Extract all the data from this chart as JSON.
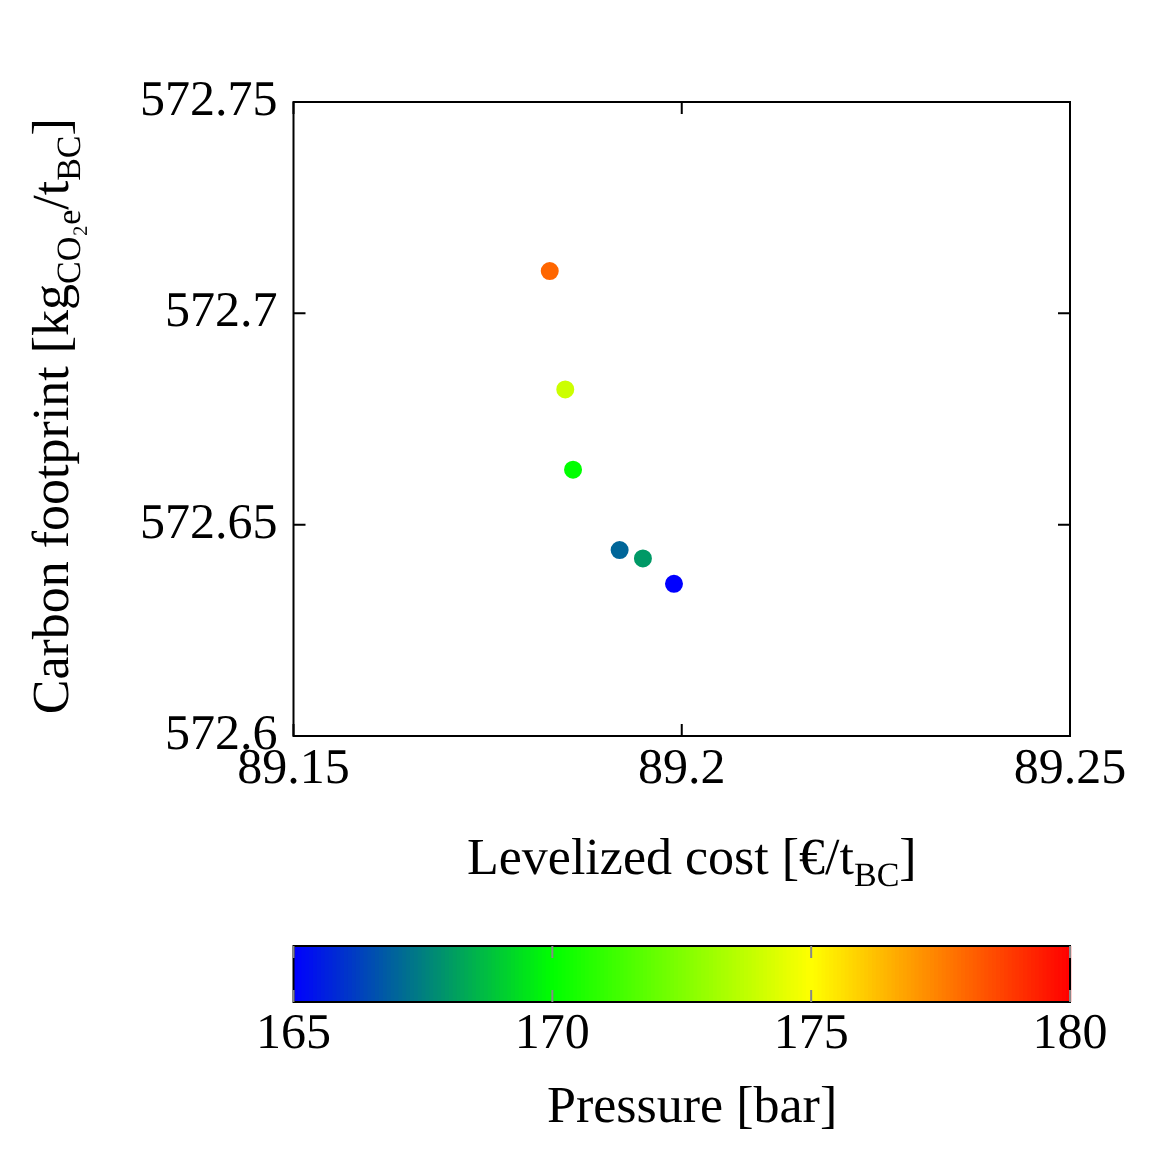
{
  "chart_data": {
    "type": "scatter",
    "xlabel": "Levelized cost [€/t$_{BC}$]",
    "ylabel": "Carbon footprint [kg$_{CO₂e}$/t$_{BC}$]",
    "clabel": "Pressure [bar]",
    "x": [
      89.183,
      89.185,
      89.186,
      89.192,
      89.195,
      89.199
    ],
    "values": [
      572.71,
      572.682,
      572.663,
      572.644,
      572.642,
      572.636
    ],
    "cvalues": [
      178,
      174,
      170,
      167,
      168,
      165
    ],
    "xlim": [
      89.15,
      89.25
    ],
    "xticks": [
      89.15,
      89.2,
      89.25
    ],
    "ylim": [
      572.6,
      572.75
    ],
    "yticks": [
      572.6,
      572.65,
      572.7,
      572.75
    ],
    "clim": [
      165,
      180
    ],
    "cticks": [
      165,
      170,
      175,
      180
    ],
    "marker": "circle",
    "grid": false,
    "legend": false
  }
}
